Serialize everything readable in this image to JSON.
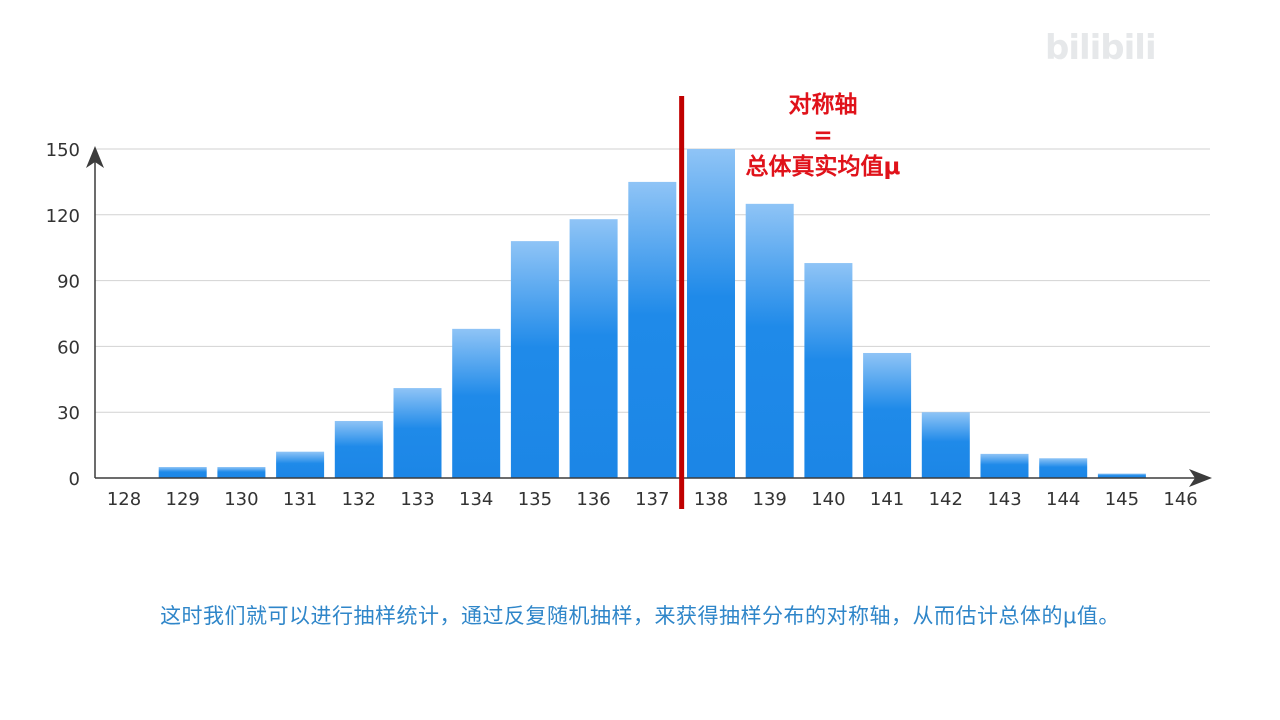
{
  "watermark": {
    "prefix": "",
    "logo": "bilibili"
  },
  "annotation": {
    "line1": "对称轴",
    "line2": "=",
    "line3": "总体真实均值μ",
    "color": "#e0121a"
  },
  "caption": "这时我们就可以进行抽样统计，通过反复随机抽样，来获得抽样分布的对称轴，从而估计总体的μ值。",
  "chart_data": {
    "type": "bar",
    "categories": [
      "128",
      "129",
      "130",
      "131",
      "132",
      "133",
      "134",
      "135",
      "136",
      "137",
      "138",
      "139",
      "140",
      "141",
      "142",
      "143",
      "144",
      "145",
      "146"
    ],
    "values": [
      0,
      5,
      5,
      12,
      26,
      41,
      68,
      108,
      118,
      135,
      150,
      125,
      98,
      57,
      30,
      11,
      9,
      2,
      0
    ],
    "yticks": [
      0,
      30,
      60,
      90,
      120,
      150
    ],
    "ylim": [
      0,
      150
    ],
    "grid": true,
    "symmetry_axis_at": 137.5,
    "bar_color": "#1e88e8",
    "axis_line_color": "#c00000",
    "title": "",
    "xlabel": "",
    "ylabel": ""
  }
}
